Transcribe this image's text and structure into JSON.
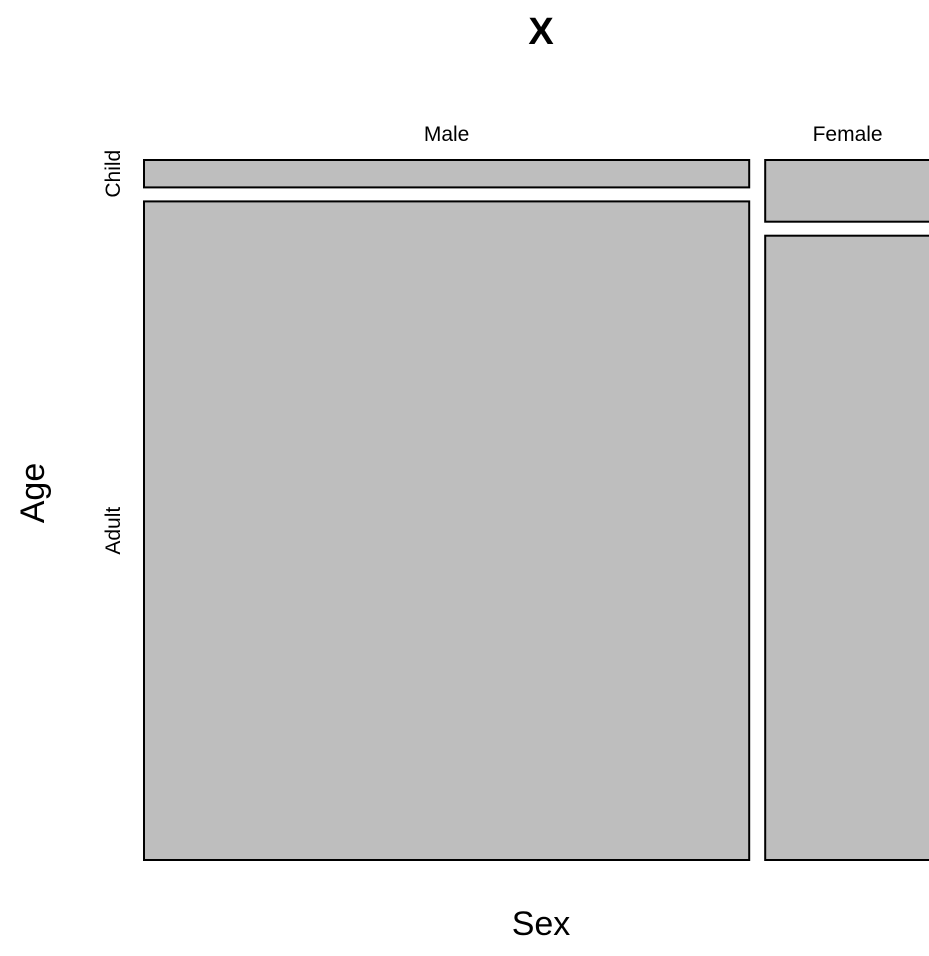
{
  "chart_data": {
    "type": "mosaic",
    "title": "X",
    "xlabel": "Sex",
    "ylabel": "Age",
    "x_categories": [
      "Male",
      "Female"
    ],
    "y_categories": [
      "Child",
      "Adult"
    ],
    "x_proportions": [
      0.786,
      0.214
    ],
    "cells": [
      {
        "x": "Male",
        "y": "Child",
        "proportion": 0.04
      },
      {
        "x": "Male",
        "y": "Adult",
        "proportion": 0.96
      },
      {
        "x": "Female",
        "y": "Child",
        "proportion": 0.09
      },
      {
        "x": "Female",
        "y": "Adult",
        "proportion": 0.91
      }
    ],
    "fill_color": "#bebebe",
    "stroke_color": "#000000",
    "grid": false,
    "legend": "none"
  }
}
